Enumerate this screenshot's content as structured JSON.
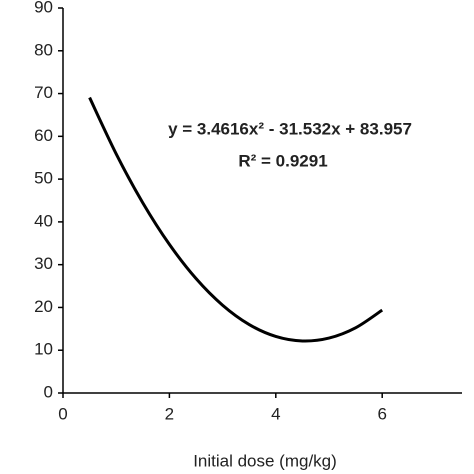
{
  "chart_data": {
    "type": "line",
    "x_label": "Initial dose (mg/kg)",
    "x": [
      0.5,
      1,
      1.5,
      2,
      2.5,
      3,
      3.5,
      4,
      4.5,
      5,
      5.5,
      6
    ],
    "series": [
      {
        "color": "#000000",
        "values": [
          69.06,
          55.89,
          44.45,
          34.74,
          26.76,
          20.52,
          16.0,
          13.22,
          12.16,
          12.84,
          15.24,
          19.38
        ]
      }
    ],
    "xlim": [
      0,
      7.5
    ],
    "xticks": [
      0,
      2,
      4,
      6
    ],
    "ylim": [
      0,
      90
    ],
    "yticks": [
      0,
      10,
      20,
      30,
      40,
      50,
      60,
      70,
      80,
      90
    ],
    "annotations": [
      "y = 3.4616x² - 31.532x + 83.957",
      "R² = 0.9291"
    ]
  }
}
